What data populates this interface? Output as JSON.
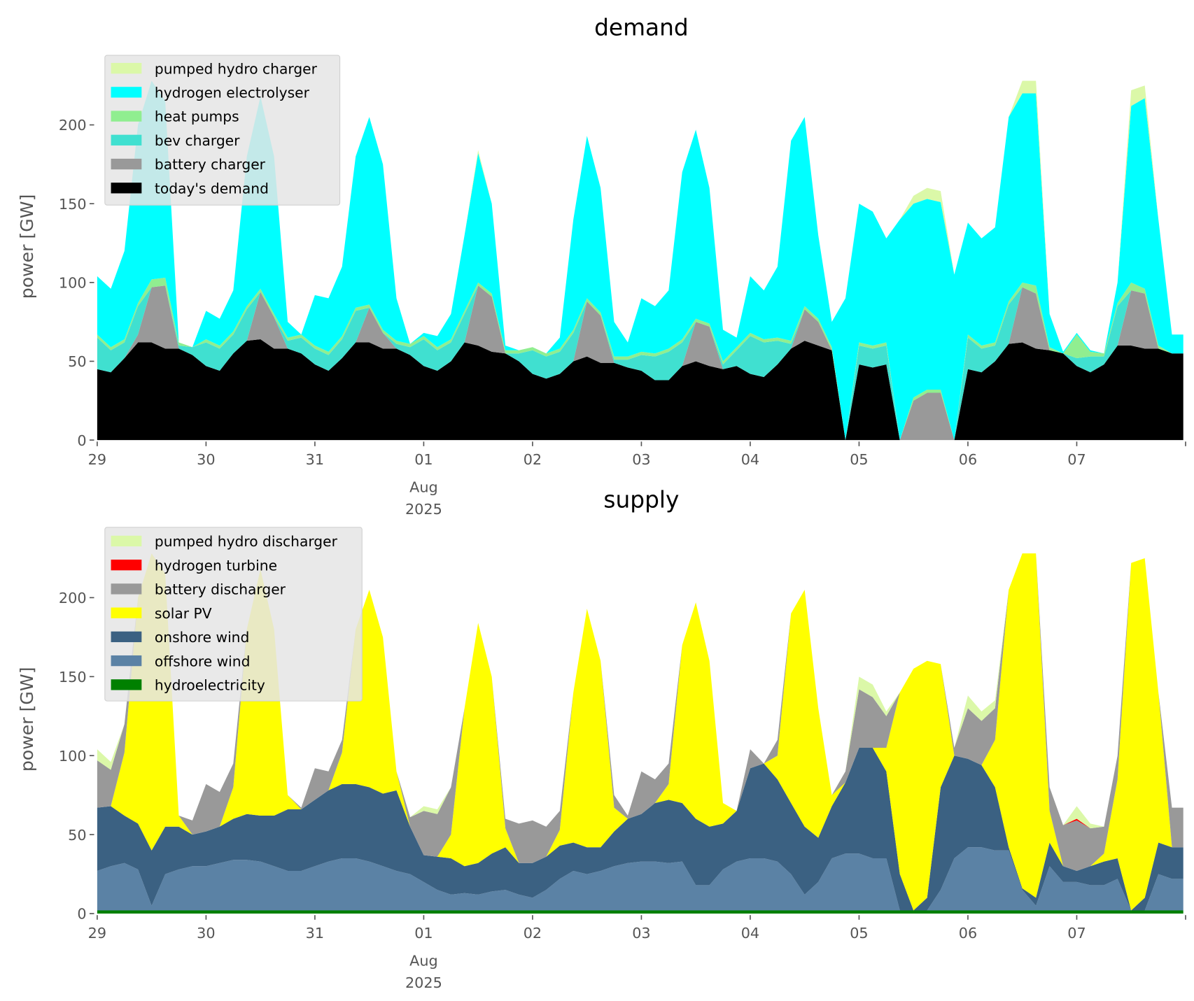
{
  "chart_data": [
    {
      "type": "area",
      "stacked": true,
      "title": "demand",
      "xlabel": "",
      "ylabel": "power [GW]",
      "x_start": "2025-07-29 00:00",
      "x_step_hours": 3,
      "xlim_hours": [
        0,
        240
      ],
      "ylim": [
        0,
        245
      ],
      "yticks": [
        0,
        50,
        100,
        150,
        200
      ],
      "xticklabels": [
        "29",
        "30",
        "31",
        "01",
        "02",
        "03",
        "04",
        "05",
        "06",
        "07"
      ],
      "xtick_sublabel": [
        "Aug",
        "2025"
      ],
      "grid": false,
      "legend_position": "top-left",
      "series": [
        {
          "name": "today's demand",
          "color": "#000000",
          "values": [
            45,
            43,
            52,
            62,
            62,
            58,
            58,
            54,
            47,
            44,
            55,
            63,
            64,
            58,
            58,
            55,
            48,
            44,
            52,
            62,
            62,
            58,
            58,
            54,
            47,
            44,
            50,
            62,
            60,
            56,
            55,
            50,
            42,
            39,
            42,
            50,
            53,
            49,
            49,
            46,
            44,
            38,
            38,
            47,
            50,
            47,
            45,
            47,
            42,
            40,
            48,
            58,
            63,
            60,
            57,
            0,
            48,
            46,
            48,
            0,
            0,
            0,
            0,
            0,
            45,
            43,
            50,
            61,
            62,
            58,
            57,
            55,
            47,
            43,
            48,
            60,
            60,
            58,
            58,
            55
          ]
        },
        {
          "name": "battery charger",
          "color": "#999999",
          "values": [
            0,
            0,
            0,
            5,
            35,
            40,
            0,
            0,
            0,
            0,
            0,
            0,
            30,
            20,
            0,
            0,
            0,
            0,
            0,
            0,
            22,
            10,
            0,
            0,
            0,
            0,
            0,
            0,
            38,
            35,
            0,
            0,
            0,
            0,
            0,
            0,
            35,
            30,
            0,
            0,
            0,
            0,
            0,
            0,
            25,
            25,
            0,
            0,
            0,
            0,
            0,
            0,
            20,
            15,
            0,
            0,
            0,
            0,
            0,
            0,
            25,
            30,
            30,
            0,
            0,
            0,
            0,
            0,
            35,
            35,
            0,
            0,
            0,
            0,
            0,
            0,
            35,
            35,
            0,
            0
          ]
        },
        {
          "name": "bev charger",
          "color": "#40e0d0",
          "values": [
            20,
            14,
            10,
            18,
            0,
            0,
            2,
            5,
            15,
            14,
            12,
            20,
            0,
            0,
            5,
            10,
            10,
            10,
            12,
            20,
            0,
            0,
            3,
            5,
            17,
            13,
            12,
            18,
            0,
            0,
            0,
            5,
            15,
            14,
            14,
            18,
            0,
            0,
            2,
            5,
            10,
            15,
            18,
            15,
            0,
            0,
            3,
            10,
            24,
            22,
            15,
            3,
            0,
            0,
            0,
            0,
            12,
            12,
            12,
            0,
            0,
            0,
            0,
            0,
            20,
            15,
            10,
            25,
            0,
            0,
            0,
            0,
            5,
            10,
            5,
            25,
            0,
            0,
            0,
            0
          ]
        },
        {
          "name": "heat pumps",
          "color": "#90ee90",
          "values": [
            2,
            2,
            2,
            2,
            5,
            5,
            2,
            0,
            2,
            2,
            2,
            2,
            2,
            2,
            2,
            2,
            2,
            2,
            2,
            2,
            2,
            2,
            2,
            2,
            2,
            2,
            2,
            2,
            2,
            2,
            2,
            2,
            2,
            2,
            2,
            2,
            2,
            2,
            2,
            2,
            2,
            2,
            2,
            2,
            2,
            2,
            2,
            2,
            2,
            2,
            2,
            2,
            2,
            2,
            2,
            0,
            2,
            2,
            2,
            0,
            2,
            2,
            2,
            0,
            2,
            2,
            2,
            2,
            3,
            5,
            2,
            0,
            15,
            3,
            2,
            2,
            5,
            3,
            2,
            0
          ]
        },
        {
          "name": "hydrogen electrolyser",
          "color": "#00ffff",
          "values": [
            37,
            37,
            56,
            113,
            126,
            112,
            0,
            0,
            18,
            17,
            26,
            95,
            122,
            100,
            10,
            0,
            32,
            34,
            44,
            96,
            119,
            105,
            27,
            0,
            2,
            7,
            16,
            48,
            82,
            57,
            3,
            0,
            0,
            0,
            7,
            70,
            103,
            79,
            22,
            9,
            34,
            30,
            37,
            106,
            120,
            86,
            20,
            6,
            36,
            31,
            45,
            127,
            120,
            53,
            16,
            90,
            88,
            85,
            66,
            140,
            123,
            121,
            119,
            105,
            71,
            68,
            73,
            117,
            120,
            122,
            21,
            1,
            1,
            1,
            0,
            13,
            112,
            121,
            80,
            12
          ]
        },
        {
          "name": "pumped hydro charger",
          "color": "#dbf8a8",
          "values": [
            0,
            0,
            0,
            0,
            0,
            0,
            0,
            0,
            0,
            0,
            0,
            0,
            0,
            0,
            0,
            0,
            0,
            0,
            0,
            0,
            0,
            0,
            0,
            0,
            0,
            0,
            0,
            0,
            2,
            0,
            0,
            0,
            0,
            0,
            0,
            0,
            0,
            0,
            0,
            0,
            0,
            0,
            0,
            0,
            0,
            0,
            0,
            0,
            0,
            0,
            0,
            0,
            0,
            0,
            0,
            0,
            0,
            0,
            0,
            0,
            5,
            7,
            7,
            0,
            0,
            0,
            0,
            0,
            8,
            8,
            0,
            0,
            0,
            0,
            0,
            0,
            10,
            8,
            0,
            0
          ]
        }
      ]
    },
    {
      "type": "area",
      "stacked": true,
      "title": "supply",
      "xlabel": "",
      "ylabel": "power [GW]",
      "x_start": "2025-07-29 00:00",
      "x_step_hours": 3,
      "xlim_hours": [
        0,
        240
      ],
      "ylim": [
        0,
        245
      ],
      "yticks": [
        0,
        50,
        100,
        150,
        200
      ],
      "xticklabels": [
        "29",
        "30",
        "31",
        "01",
        "02",
        "03",
        "04",
        "05",
        "06",
        "07"
      ],
      "xtick_sublabel": [
        "Aug",
        "2025"
      ],
      "grid": false,
      "legend_position": "top-left",
      "series": [
        {
          "name": "hydroelectricity",
          "color": "#008000",
          "values": [
            2,
            2,
            2,
            2,
            2,
            2,
            2,
            2,
            2,
            2,
            2,
            2,
            2,
            2,
            2,
            2,
            2,
            2,
            2,
            2,
            2,
            2,
            2,
            2,
            2,
            2,
            2,
            2,
            2,
            2,
            2,
            2,
            2,
            2,
            2,
            2,
            2,
            2,
            2,
            2,
            2,
            2,
            2,
            2,
            2,
            2,
            2,
            2,
            2,
            2,
            2,
            2,
            2,
            2,
            2,
            2,
            2,
            2,
            2,
            2,
            2,
            2,
            2,
            2,
            2,
            2,
            2,
            2,
            2,
            2,
            2,
            2,
            2,
            2,
            2,
            2,
            2,
            2,
            2,
            2
          ]
        },
        {
          "name": "offshore wind",
          "color": "#5b82a5",
          "values": [
            25,
            28,
            30,
            26,
            3,
            23,
            26,
            28,
            28,
            30,
            32,
            32,
            31,
            28,
            25,
            25,
            28,
            31,
            33,
            33,
            31,
            28,
            25,
            23,
            18,
            13,
            10,
            11,
            10,
            12,
            13,
            10,
            8,
            13,
            20,
            25,
            23,
            25,
            28,
            30,
            31,
            31,
            30,
            31,
            16,
            16,
            26,
            31,
            33,
            33,
            31,
            23,
            10,
            18,
            33,
            36,
            36,
            33,
            33,
            0,
            0,
            0,
            13,
            33,
            40,
            40,
            38,
            38,
            13,
            3,
            28,
            18,
            18,
            16,
            16,
            20,
            0,
            0,
            23,
            20
          ]
        },
        {
          "name": "onshore wind",
          "color": "#3b6182",
          "values": [
            40,
            38,
            30,
            29,
            35,
            30,
            27,
            20,
            22,
            23,
            26,
            29,
            29,
            32,
            39,
            39,
            42,
            45,
            47,
            47,
            47,
            46,
            51,
            30,
            17,
            21,
            23,
            17,
            20,
            24,
            27,
            20,
            22,
            21,
            21,
            18,
            17,
            15,
            22,
            28,
            30,
            37,
            40,
            37,
            42,
            37,
            29,
            32,
            57,
            60,
            52,
            45,
            43,
            28,
            33,
            45,
            67,
            70,
            55,
            23,
            0,
            8,
            65,
            65,
            56,
            52,
            40,
            2,
            1,
            5,
            15,
            10,
            7,
            12,
            15,
            13,
            0,
            8,
            20,
            20
          ]
        },
        {
          "name": "solar PV",
          "color": "#ffff00",
          "values": [
            0,
            0,
            40,
            143,
            188,
            160,
            7,
            0,
            0,
            0,
            20,
            117,
            156,
            118,
            9,
            0,
            0,
            0,
            20,
            98,
            125,
            99,
            12,
            0,
            0,
            0,
            15,
            100,
            152,
            112,
            12,
            0,
            0,
            0,
            10,
            95,
            151,
            118,
            15,
            0,
            0,
            0,
            10,
            100,
            137,
            105,
            13,
            0,
            0,
            0,
            15,
            120,
            150,
            82,
            7,
            0,
            0,
            0,
            15,
            115,
            153,
            150,
            78,
            0,
            0,
            0,
            30,
            163,
            212,
            218,
            20,
            0,
            0,
            0,
            5,
            50,
            220,
            215,
            95,
            0
          ]
        },
        {
          "name": "battery discharger",
          "color": "#999999",
          "values": [
            30,
            23,
            18,
            0,
            0,
            0,
            0,
            9,
            30,
            22,
            15,
            0,
            0,
            0,
            0,
            1,
            20,
            12,
            8,
            0,
            0,
            0,
            0,
            6,
            28,
            27,
            30,
            0,
            0,
            0,
            6,
            25,
            27,
            19,
            12,
            0,
            0,
            0,
            8,
            2,
            27,
            15,
            13,
            0,
            0,
            0,
            0,
            0,
            12,
            0,
            10,
            0,
            0,
            0,
            0,
            7,
            37,
            32,
            20,
            0,
            0,
            0,
            0,
            5,
            32,
            28,
            20,
            0,
            0,
            0,
            15,
            26,
            32,
            24,
            17,
            15,
            0,
            0,
            0,
            25
          ]
        },
        {
          "name": "hydrogen turbine",
          "color": "#ff0000",
          "values": [
            0,
            0,
            0,
            0,
            0,
            0,
            0,
            0,
            0,
            0,
            0,
            0,
            0,
            0,
            0,
            0,
            0,
            0,
            0,
            0,
            0,
            0,
            0,
            0,
            0,
            0,
            0,
            0,
            0,
            0,
            0,
            0,
            0,
            0,
            0,
            0,
            0,
            0,
            0,
            0,
            0,
            0,
            0,
            0,
            0,
            0,
            0,
            0,
            0,
            0,
            0,
            0,
            0,
            0,
            0,
            0,
            0,
            0,
            0,
            0,
            0,
            0,
            0,
            0,
            0,
            0,
            0,
            0,
            0,
            0,
            0,
            0,
            1,
            0,
            0,
            0,
            0,
            0,
            0,
            0
          ]
        },
        {
          "name": "pumped hydro discharger",
          "color": "#dbf8a8",
          "values": [
            7,
            5,
            0,
            0,
            0,
            0,
            0,
            0,
            0,
            0,
            0,
            0,
            0,
            0,
            0,
            0,
            0,
            0,
            0,
            0,
            0,
            0,
            0,
            0,
            3,
            3,
            0,
            0,
            0,
            0,
            0,
            0,
            0,
            0,
            0,
            0,
            0,
            0,
            0,
            0,
            0,
            0,
            0,
            0,
            0,
            0,
            0,
            0,
            0,
            0,
            0,
            0,
            0,
            0,
            0,
            0,
            8,
            8,
            3,
            0,
            0,
            0,
            0,
            0,
            8,
            6,
            5,
            0,
            0,
            0,
            0,
            0,
            8,
            3,
            0,
            0,
            0,
            0,
            0,
            0
          ]
        }
      ]
    }
  ]
}
